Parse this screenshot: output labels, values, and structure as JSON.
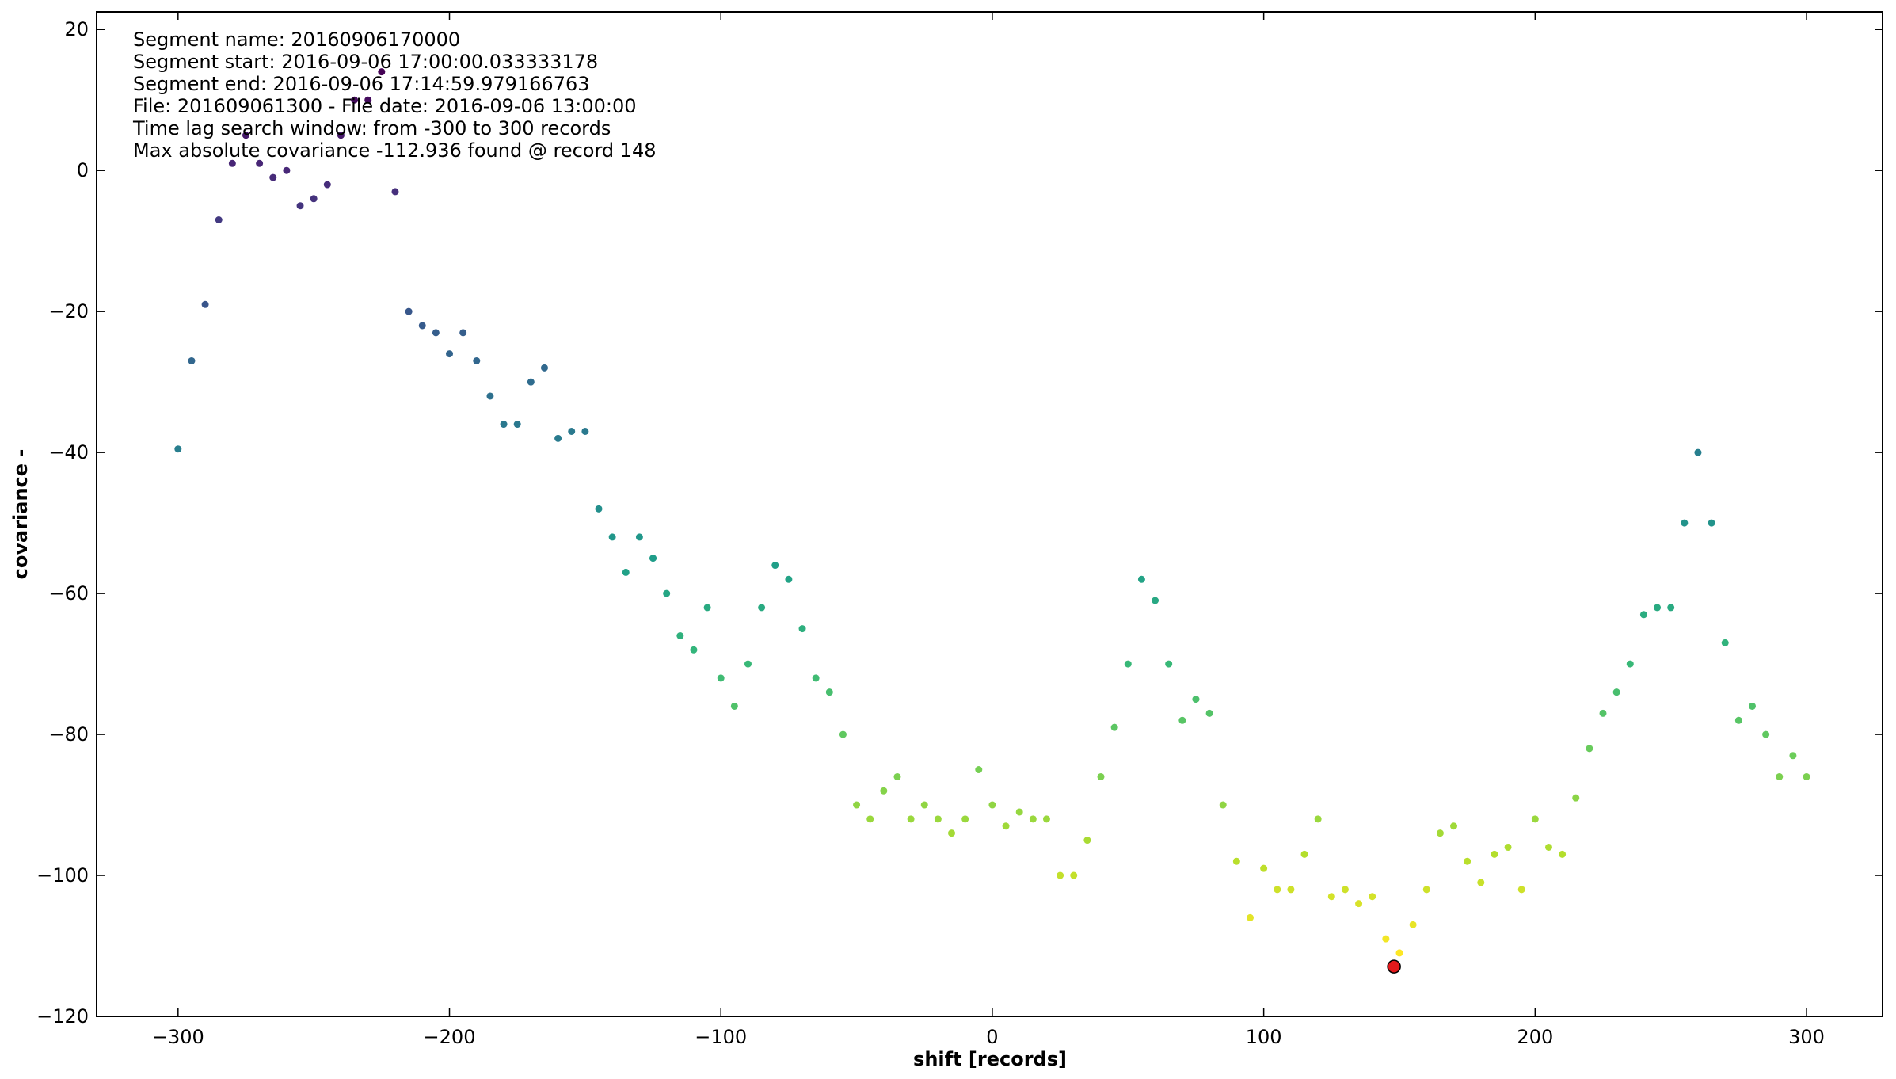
{
  "chart_data": {
    "type": "scatter",
    "annotations": [
      "Segment name: 20160906170000",
      "Segment start: 2016-09-06 17:00:00.033333178",
      "Segment end: 2016-09-06 17:14:59.979166763",
      "File: 201609061300 - File date: 2016-09-06 13:00:00",
      "Time lag search window: from -300 to 300 records",
      "Max absolute covariance -112.936 found @ record 148"
    ],
    "xlabel": "shift [records]",
    "ylabel": "covariance  -",
    "colormap": "viridis_r",
    "x": [
      -300,
      -295,
      -290,
      -285,
      -280,
      -275,
      -270,
      -265,
      -260,
      -255,
      -250,
      -245,
      -240,
      -235,
      -230,
      -225,
      -220,
      -215,
      -210,
      -205,
      -200,
      -195,
      -190,
      -185,
      -180,
      -175,
      -170,
      -165,
      -160,
      -155,
      -150,
      -145,
      -140,
      -135,
      -130,
      -125,
      -120,
      -115,
      -110,
      -105,
      -100,
      -95,
      -90,
      -85,
      -80,
      -75,
      -70,
      -65,
      -60,
      -55,
      -50,
      -45,
      -40,
      -35,
      -30,
      -25,
      -20,
      -15,
      -10,
      -5,
      0,
      5,
      10,
      15,
      20,
      25,
      30,
      35,
      40,
      45,
      50,
      55,
      60,
      65,
      70,
      75,
      80,
      85,
      90,
      95,
      100,
      105,
      110,
      115,
      120,
      125,
      130,
      135,
      140,
      145,
      150,
      155,
      160,
      165,
      170,
      175,
      180,
      185,
      190,
      195,
      200,
      205,
      210,
      215,
      220,
      225,
      230,
      235,
      240,
      245,
      250,
      255,
      260,
      265,
      270,
      275,
      280,
      285,
      290,
      295,
      300
    ],
    "values": [
      -39.5,
      -27,
      -19,
      -7,
      1,
      5,
      1,
      -1,
      0,
      -5,
      -4,
      -2,
      5,
      10,
      10,
      14,
      -3,
      -20,
      -22,
      -23,
      -26,
      -23,
      -27,
      -32,
      -36,
      -36,
      -30,
      -28,
      -38,
      -37,
      -37,
      -48,
      -52,
      -57,
      -52,
      -55,
      -60,
      -66,
      -68,
      -62,
      -72,
      -76,
      -70,
      -62,
      -56,
      -58,
      -65,
      -72,
      -74,
      -80,
      -90,
      -92,
      -88,
      -86,
      -92,
      -90,
      -92,
      -94,
      -92,
      -85,
      -90,
      -93,
      -91,
      -92,
      -92,
      -100,
      -100,
      -95,
      -86,
      -79,
      -70,
      -58,
      -61,
      -70,
      -78,
      -75,
      -77,
      -90,
      -98,
      -106,
      -99,
      -102,
      -102,
      -97,
      -92,
      -103,
      -102,
      -104,
      -103,
      -109,
      -111,
      -107,
      -102,
      -94,
      -93,
      -98,
      -101,
      -97,
      -96,
      -102,
      -92,
      -96,
      -97,
      -89,
      -82,
      -77,
      -74,
      -70,
      -63,
      -62,
      -62,
      -50,
      -40,
      -50,
      -67,
      -78,
      -76,
      -80,
      -86,
      -83,
      -86
    ],
    "highlight": {
      "x": 148,
      "y": -112.936,
      "color": "#e31a1c"
    },
    "xlim": [
      -330,
      328
    ],
    "ylim": [
      -120,
      22.5
    ],
    "xticks": [
      {
        "value": -300,
        "label": "−300"
      },
      {
        "value": -200,
        "label": "−200"
      },
      {
        "value": -100,
        "label": "−100"
      },
      0,
      100,
      200,
      300
    ],
    "yticks": [
      {
        "value": -120,
        "label": "−120"
      },
      {
        "value": -100,
        "label": "−100"
      },
      {
        "value": -80,
        "label": "−80"
      },
      {
        "value": -60,
        "label": "−60"
      },
      {
        "value": -40,
        "label": "−40"
      },
      {
        "value": -20,
        "label": "−20"
      },
      0,
      20
    ]
  }
}
